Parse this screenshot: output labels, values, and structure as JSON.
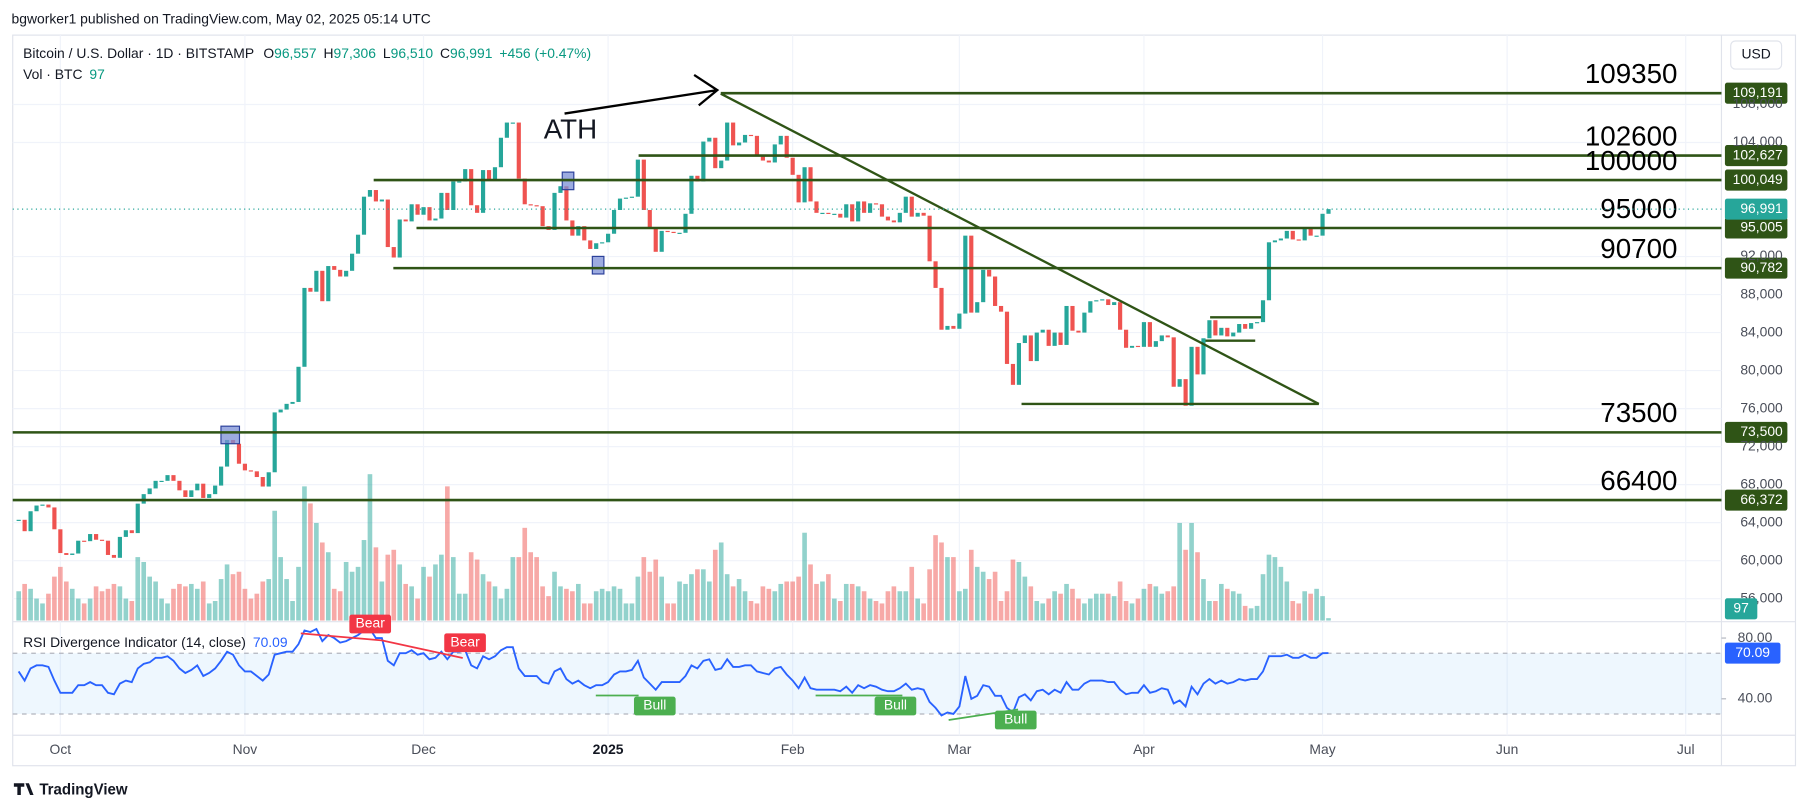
{
  "header": {
    "publisher": "bgworker1 published on TradingView.com, May 02, 2025 05:14 UTC",
    "footer": "TradingView"
  },
  "chart_data": {
    "type": "candlestick",
    "title": "Bitcoin / U.S. Dollar · 1D · BITSTAMP",
    "legend": [
      {
        "key": "O",
        "value": "96,557"
      },
      {
        "key": "H",
        "value": "97,306"
      },
      {
        "key": "L",
        "value": "96,510"
      },
      {
        "key": "C",
        "value": "96,991"
      }
    ],
    "change": "+456 (+0.47%)",
    "currency": "USD",
    "annotation": "ATH",
    "colors": {
      "up": "#26a69a",
      "down": "#ef5350",
      "level": "#2f5416"
    },
    "close": [
      64300,
      63100,
      65200,
      65800,
      65900,
      65600,
      63300,
      60800,
      60600,
      60750,
      62100,
      62050,
      62800,
      62200,
      62100,
      60600,
      60300,
      62500,
      63200,
      62900,
      66000,
      67000,
      67600,
      68400,
      68400,
      69000,
      68400,
      67400,
      66700,
      67400,
      68100,
      66600,
      67000,
      67900,
      69900,
      72700,
      72300,
      70200,
      69500,
      69400,
      68800,
      67800,
      69300,
      75600,
      75900,
      76500,
      76700,
      80400,
      88700,
      88300,
      90500,
      87300,
      91000,
      90600,
      89900,
      90500,
      92300,
      94300,
      98300,
      99000,
      97800,
      98000,
      93000,
      91900,
      95900,
      95700,
      97500,
      96400,
      97200,
      95800,
      96000,
      98700,
      96900,
      99900,
      99900,
      101200,
      97400,
      96600,
      101100,
      100000,
      101400,
      104500,
      106100,
      106100,
      100200,
      97500,
      97400,
      97300,
      95200,
      94800,
      98700,
      99400,
      95800,
      94200,
      95200,
      93700,
      92800,
      93400,
      93500,
      94400,
      96900,
      98100,
      98200,
      98300,
      102200,
      96900,
      95000,
      92500,
      94700,
      94600,
      94500,
      94500,
      96500,
      100500,
      99900,
      104100,
      104500,
      101300,
      102100,
      106100,
      103700,
      104000,
      104800,
      104700,
      102600,
      102100,
      101900,
      103800,
      104700,
      102400,
      100600,
      97700,
      101400,
      97800,
      96600,
      96600,
      96500,
      96500,
      96100,
      97500,
      95700,
      97800,
      96600,
      97600,
      97500,
      96200,
      95800,
      95600,
      96600,
      98300,
      96200,
      96600,
      96300,
      91500,
      88700,
      84300,
      84700,
      84400,
      86000,
      94200,
      86100,
      87200,
      90600,
      89900,
      86800,
      86200,
      80700,
      78500,
      82900,
      83700,
      81000,
      84000,
      84300,
      82600,
      84000,
      82700,
      86800,
      84200,
      84000,
      86100,
      87300,
      87400,
      87500,
      86900,
      87200,
      84300,
      82400,
      82600,
      82500,
      85100,
      82500,
      83100,
      83700,
      83500,
      78300,
      79100,
      76300,
      82500,
      79600,
      83400,
      85300,
      83700,
      84500,
      83600,
      84000,
      84900,
      84400,
      85000,
      85100,
      87400,
      93500,
      93700,
      93900,
      94700,
      93800,
      93700,
      95000,
      94200,
      94200,
      96500,
      96991
    ],
    "volume_label": "Vol · BTC",
    "volume": [
      1200,
      1500,
      1300,
      900,
      700,
      1100,
      1800,
      2200,
      1600,
      1300,
      900,
      700,
      900,
      1400,
      1200,
      1300,
      1500,
      1400,
      900,
      800,
      2600,
      2400,
      1800,
      1600,
      900,
      700,
      1300,
      1500,
      1400,
      1500,
      1300,
      1600,
      700,
      800,
      1700,
      2300,
      1900,
      2000,
      1300,
      900,
      1100,
      1600,
      1700,
      4500,
      2600,
      1700,
      800,
      2200,
      5500,
      4800,
      4000,
      3200,
      2800,
      1300,
      1200,
      2400,
      2000,
      2200,
      3300,
      6000,
      3000,
      1600,
      2700,
      2900,
      2300,
      1500,
      1400,
      900,
      2200,
      1800,
      2300,
      2700,
      5500,
      2600,
      1100,
      1100,
      2800,
      2500,
      1900,
      1600,
      1400,
      900,
      1300,
      2600,
      2600,
      3800,
      2800,
      2600,
      1400,
      1000,
      2000,
      1400,
      1300,
      1200,
      1500,
      700,
      700,
      1200,
      1300,
      1200,
      1400,
      1300,
      700,
      700,
      1800,
      2600,
      2000,
      2500,
      1800,
      700,
      700,
      1600,
      1500,
      1900,
      2100,
      2100,
      1600,
      2900,
      3200,
      1900,
      1400,
      1700,
      1200,
      800,
      700,
      1400,
      1300,
      1200,
      1500,
      1600,
      1600,
      1800,
      3600,
      2300,
      1500,
      1600,
      1900,
      900,
      800,
      1500,
      1500,
      1400,
      1200,
      900,
      800,
      700,
      1200,
      1400,
      1200,
      1200,
      2200,
      900,
      700,
      2100,
      3500,
      3200,
      2600,
      2600,
      1200,
      1300,
      2900,
      2200,
      2000,
      1700,
      2000,
      800,
      1200,
      2500,
      2400,
      1800,
      1400,
      800,
      700,
      900,
      1200,
      1100,
      1500,
      1300,
      900,
      700,
      900,
      1100,
      1100,
      1100,
      1000,
      1600,
      800,
      700,
      900,
      1300,
      1500,
      1400,
      1100,
      1200,
      1400,
      4000,
      2900,
      4000,
      2800,
      1700,
      800,
      800,
      1500,
      1300,
      1200,
      1100,
      600,
      500,
      600,
      1900,
      2700,
      2600,
      2200,
      1600,
      800,
      700,
      1200,
      1100,
      1300,
      1000,
      97
    ],
    "last_price_label": "96,991",
    "xlim": [
      -1,
      286
    ],
    "xticks": [
      {
        "value": 7,
        "label": "Oct"
      },
      {
        "value": 38,
        "label": "Nov"
      },
      {
        "value": 68,
        "label": "Dec"
      },
      {
        "value": 99,
        "label": "2025"
      },
      {
        "value": 130,
        "label": "Feb"
      },
      {
        "value": 158,
        "label": "Mar"
      },
      {
        "value": 189,
        "label": "Apr"
      },
      {
        "value": 219,
        "label": "May"
      },
      {
        "value": 250,
        "label": "Jun"
      },
      {
        "value": 280,
        "label": "Jul"
      }
    ],
    "ylim": [
      53700,
      115300
    ],
    "yticks": [
      {
        "value": 56000,
        "label": "56,000"
      },
      {
        "value": 60000,
        "label": "60,000"
      },
      {
        "value": 64000,
        "label": "64,000"
      },
      {
        "value": 68000,
        "label": "68,000"
      },
      {
        "value": 72000,
        "label": "72,000"
      },
      {
        "value": 76000,
        "label": "76,000"
      },
      {
        "value": 80000,
        "label": "80,000"
      },
      {
        "value": 84000,
        "label": "84,000"
      },
      {
        "value": 88000,
        "label": "88,000"
      },
      {
        "value": 92000,
        "label": "92,000"
      },
      {
        "value": 104000,
        "label": "104,000"
      },
      {
        "value": 108000,
        "label": "108,000"
      }
    ],
    "grid": true,
    "levels": [
      {
        "price": 109191,
        "tag": "109,191",
        "note": "109350"
      },
      {
        "price": 102627,
        "tag": "102,627",
        "note": "102600"
      },
      {
        "price": 100049,
        "tag": "100,049",
        "note": "100000"
      },
      {
        "price": 95005,
        "tag": "95,005",
        "note": "95000"
      },
      {
        "price": 90782,
        "tag": "90,782",
        "note": "90700"
      },
      {
        "price": 73500,
        "tag": "73,500",
        "note": "73500"
      },
      {
        "price": 66372,
        "tag": "66,372",
        "note": "66400"
      }
    ],
    "rsi": {
      "title": "RSI Divergence Indicator (14, close)",
      "color": "#2962ff",
      "values": [
        58,
        52,
        60,
        62,
        62,
        61,
        52,
        44,
        44,
        44,
        49,
        49,
        51,
        49,
        49,
        44,
        43,
        50,
        52,
        51,
        60,
        63,
        64,
        67,
        67,
        68,
        65,
        60,
        57,
        59,
        62,
        55,
        57,
        60,
        65,
        71,
        69,
        62,
        58,
        58,
        55,
        52,
        56,
        69,
        70,
        71,
        71,
        76,
        85,
        84,
        86,
        78,
        82,
        80,
        77,
        78,
        80,
        82,
        85,
        86,
        80,
        80,
        65,
        62,
        70,
        70,
        72,
        69,
        70,
        66,
        67,
        71,
        66,
        71,
        71,
        72,
        62,
        60,
        68,
        66,
        68,
        72,
        74,
        74,
        60,
        55,
        55,
        55,
        51,
        50,
        58,
        60,
        53,
        50,
        52,
        49,
        47,
        49,
        49,
        51,
        56,
        58,
        58,
        59,
        65,
        54,
        50,
        46,
        51,
        51,
        51,
        51,
        55,
        62,
        60,
        65,
        66,
        59,
        60,
        66,
        61,
        61,
        62,
        62,
        58,
        57,
        56,
        60,
        61,
        56,
        52,
        47,
        54,
        47,
        46,
        46,
        46,
        46,
        45,
        48,
        44,
        49,
        47,
        49,
        48,
        46,
        45,
        45,
        47,
        50,
        46,
        47,
        46,
        38,
        34,
        29,
        31,
        30,
        35,
        55,
        40,
        42,
        49,
        48,
        42,
        42,
        34,
        31,
        41,
        43,
        39,
        45,
        46,
        43,
        46,
        44,
        51,
        46,
        46,
        50,
        52,
        52,
        52,
        51,
        51,
        46,
        43,
        44,
        44,
        49,
        44,
        45,
        47,
        46,
        37,
        39,
        35,
        48,
        43,
        50,
        53,
        50,
        52,
        50,
        51,
        53,
        52,
        53,
        53,
        58,
        68,
        68,
        68,
        69,
        67,
        67,
        69,
        67,
        67,
        70,
        70.09
      ],
      "ylim": [
        16,
        90
      ],
      "yticks": [
        {
          "value": 80,
          "label": "80.00"
        },
        {
          "value": 40,
          "label": "40.00"
        }
      ],
      "band": [
        30,
        70
      ],
      "signals": [
        "Bear",
        "Bear",
        "Bull",
        "Bull",
        "Bull"
      ]
    }
  }
}
